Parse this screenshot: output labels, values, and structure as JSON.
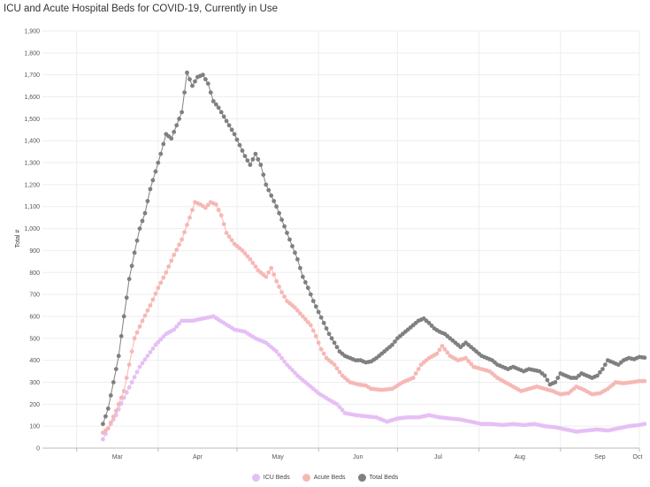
{
  "chart_data": {
    "type": "line",
    "title": "ICU and Acute Hospital Beds for COVID-19, Currently in Use",
    "ylabel": "Total #",
    "xlabel": "",
    "ylim": [
      0,
      1900
    ],
    "yticks": [
      "0",
      "100",
      "200",
      "300",
      "400",
      "500",
      "600",
      "700",
      "800",
      "900",
      "1,000",
      "1,100",
      "1,200",
      "1,300",
      "1,400",
      "1,500",
      "1,600",
      "1,700",
      "1,800",
      "1,900"
    ],
    "x_start": "2020-02-17",
    "x_end": "2020-10-01",
    "month_labels": [
      {
        "label": "Mar",
        "date": "2020-03-01"
      },
      {
        "label": "Apr",
        "date": "2020-04-01"
      },
      {
        "label": "May",
        "date": "2020-05-01"
      },
      {
        "label": "Jun",
        "date": "2020-06-01"
      },
      {
        "label": "Jul",
        "date": "2020-07-01"
      },
      {
        "label": "Aug",
        "date": "2020-08-01"
      },
      {
        "label": "Sep",
        "date": "2020-09-01"
      },
      {
        "label": "Oct",
        "date": "2020-10-01"
      }
    ],
    "grid": true,
    "legend_position": "bottom",
    "series_start_date": "2020-03-11",
    "series": [
      {
        "name": "ICU Beds",
        "color": "#e6bff5",
        "anchors": [
          [
            0,
            40
          ],
          [
            2,
            90
          ],
          [
            5,
            150
          ],
          [
            8,
            230
          ],
          [
            11,
            300
          ],
          [
            14,
            370
          ],
          [
            17,
            420
          ],
          [
            20,
            470
          ],
          [
            24,
            520
          ],
          [
            27,
            540
          ],
          [
            30,
            580
          ],
          [
            34,
            580
          ],
          [
            38,
            590
          ],
          [
            42,
            600
          ],
          [
            46,
            570
          ],
          [
            50,
            540
          ],
          [
            54,
            530
          ],
          [
            58,
            500
          ],
          [
            62,
            480
          ],
          [
            66,
            440
          ],
          [
            70,
            380
          ],
          [
            74,
            330
          ],
          [
            78,
            290
          ],
          [
            82,
            250
          ],
          [
            86,
            220
          ],
          [
            89,
            200
          ],
          [
            92,
            160
          ],
          [
            96,
            150
          ],
          [
            100,
            145
          ],
          [
            104,
            140
          ],
          [
            108,
            120
          ],
          [
            112,
            135
          ],
          [
            116,
            140
          ],
          [
            120,
            140
          ],
          [
            124,
            150
          ],
          [
            128,
            140
          ],
          [
            132,
            135
          ],
          [
            136,
            130
          ],
          [
            140,
            120
          ],
          [
            144,
            110
          ],
          [
            148,
            110
          ],
          [
            152,
            105
          ],
          [
            156,
            110
          ],
          [
            160,
            105
          ],
          [
            164,
            110
          ],
          [
            168,
            100
          ],
          [
            172,
            95
          ],
          [
            176,
            85
          ],
          [
            180,
            75
          ],
          [
            184,
            80
          ],
          [
            188,
            85
          ],
          [
            192,
            80
          ],
          [
            196,
            90
          ],
          [
            200,
            100
          ],
          [
            204,
            105
          ],
          [
            206,
            110
          ]
        ]
      },
      {
        "name": "Acute Beds",
        "color": "#f6b8b5",
        "anchors": [
          [
            0,
            70
          ],
          [
            2,
            90
          ],
          [
            5,
            170
          ],
          [
            8,
            260
          ],
          [
            10,
            380
          ],
          [
            12,
            500
          ],
          [
            15,
            580
          ],
          [
            18,
            650
          ],
          [
            21,
            730
          ],
          [
            24,
            800
          ],
          [
            27,
            880
          ],
          [
            30,
            950
          ],
          [
            33,
            1050
          ],
          [
            35,
            1120
          ],
          [
            37,
            1110
          ],
          [
            39,
            1095
          ],
          [
            41,
            1120
          ],
          [
            43,
            1110
          ],
          [
            45,
            1060
          ],
          [
            47,
            980
          ],
          [
            50,
            930
          ],
          [
            53,
            900
          ],
          [
            56,
            860
          ],
          [
            59,
            810
          ],
          [
            62,
            780
          ],
          [
            64,
            820
          ],
          [
            66,
            760
          ],
          [
            68,
            710
          ],
          [
            70,
            670
          ],
          [
            73,
            640
          ],
          [
            76,
            600
          ],
          [
            79,
            560
          ],
          [
            81,
            510
          ],
          [
            83,
            450
          ],
          [
            85,
            410
          ],
          [
            88,
            380
          ],
          [
            91,
            330
          ],
          [
            94,
            300
          ],
          [
            97,
            290
          ],
          [
            100,
            285
          ],
          [
            102,
            270
          ],
          [
            106,
            265
          ],
          [
            110,
            270
          ],
          [
            114,
            300
          ],
          [
            118,
            320
          ],
          [
            121,
            380
          ],
          [
            124,
            410
          ],
          [
            127,
            430
          ],
          [
            129,
            465
          ],
          [
            132,
            420
          ],
          [
            135,
            400
          ],
          [
            138,
            410
          ],
          [
            141,
            370
          ],
          [
            144,
            360
          ],
          [
            147,
            350
          ],
          [
            150,
            320
          ],
          [
            153,
            300
          ],
          [
            156,
            280
          ],
          [
            159,
            260
          ],
          [
            162,
            270
          ],
          [
            165,
            280
          ],
          [
            168,
            270
          ],
          [
            171,
            260
          ],
          [
            174,
            245
          ],
          [
            177,
            250
          ],
          [
            180,
            280
          ],
          [
            183,
            265
          ],
          [
            186,
            245
          ],
          [
            189,
            250
          ],
          [
            192,
            270
          ],
          [
            195,
            300
          ],
          [
            198,
            295
          ],
          [
            201,
            300
          ],
          [
            204,
            305
          ],
          [
            206,
            305
          ]
        ]
      },
      {
        "name": "Total Beds",
        "color": "#808080",
        "anchors": [
          [
            0,
            110
          ],
          [
            2,
            180
          ],
          [
            4,
            300
          ],
          [
            6,
            420
          ],
          [
            8,
            600
          ],
          [
            10,
            770
          ],
          [
            12,
            890
          ],
          [
            14,
            1000
          ],
          [
            16,
            1070
          ],
          [
            18,
            1180
          ],
          [
            20,
            1260
          ],
          [
            22,
            1340
          ],
          [
            24,
            1430
          ],
          [
            26,
            1410
          ],
          [
            28,
            1470
          ],
          [
            30,
            1530
          ],
          [
            32,
            1710
          ],
          [
            34,
            1650
          ],
          [
            36,
            1690
          ],
          [
            38,
            1700
          ],
          [
            40,
            1660
          ],
          [
            42,
            1580
          ],
          [
            44,
            1550
          ],
          [
            46,
            1510
          ],
          [
            48,
            1470
          ],
          [
            50,
            1430
          ],
          [
            52,
            1380
          ],
          [
            54,
            1330
          ],
          [
            56,
            1290
          ],
          [
            58,
            1340
          ],
          [
            60,
            1290
          ],
          [
            62,
            1200
          ],
          [
            64,
            1150
          ],
          [
            66,
            1100
          ],
          [
            68,
            1040
          ],
          [
            70,
            980
          ],
          [
            72,
            920
          ],
          [
            74,
            860
          ],
          [
            76,
            780
          ],
          [
            78,
            730
          ],
          [
            80,
            670
          ],
          [
            82,
            620
          ],
          [
            84,
            570
          ],
          [
            86,
            520
          ],
          [
            88,
            480
          ],
          [
            90,
            440
          ],
          [
            92,
            420
          ],
          [
            94,
            410
          ],
          [
            96,
            400
          ],
          [
            98,
            400
          ],
          [
            100,
            390
          ],
          [
            102,
            395
          ],
          [
            104,
            410
          ],
          [
            106,
            430
          ],
          [
            108,
            450
          ],
          [
            110,
            470
          ],
          [
            112,
            500
          ],
          [
            114,
            520
          ],
          [
            116,
            540
          ],
          [
            118,
            560
          ],
          [
            120,
            580
          ],
          [
            122,
            590
          ],
          [
            124,
            570
          ],
          [
            126,
            545
          ],
          [
            128,
            530
          ],
          [
            130,
            520
          ],
          [
            132,
            500
          ],
          [
            134,
            480
          ],
          [
            136,
            460
          ],
          [
            138,
            480
          ],
          [
            140,
            460
          ],
          [
            142,
            440
          ],
          [
            144,
            420
          ],
          [
            146,
            410
          ],
          [
            148,
            400
          ],
          [
            150,
            380
          ],
          [
            152,
            370
          ],
          [
            154,
            360
          ],
          [
            156,
            370
          ],
          [
            158,
            360
          ],
          [
            160,
            350
          ],
          [
            162,
            360
          ],
          [
            164,
            355
          ],
          [
            166,
            350
          ],
          [
            168,
            330
          ],
          [
            170,
            290
          ],
          [
            172,
            300
          ],
          [
            174,
            340
          ],
          [
            176,
            330
          ],
          [
            178,
            320
          ],
          [
            180,
            320
          ],
          [
            182,
            340
          ],
          [
            184,
            330
          ],
          [
            186,
            320
          ],
          [
            188,
            330
          ],
          [
            190,
            360
          ],
          [
            192,
            400
          ],
          [
            194,
            390
          ],
          [
            196,
            380
          ],
          [
            198,
            400
          ],
          [
            200,
            410
          ],
          [
            202,
            405
          ],
          [
            204,
            415
          ],
          [
            206,
            412
          ]
        ]
      }
    ]
  }
}
